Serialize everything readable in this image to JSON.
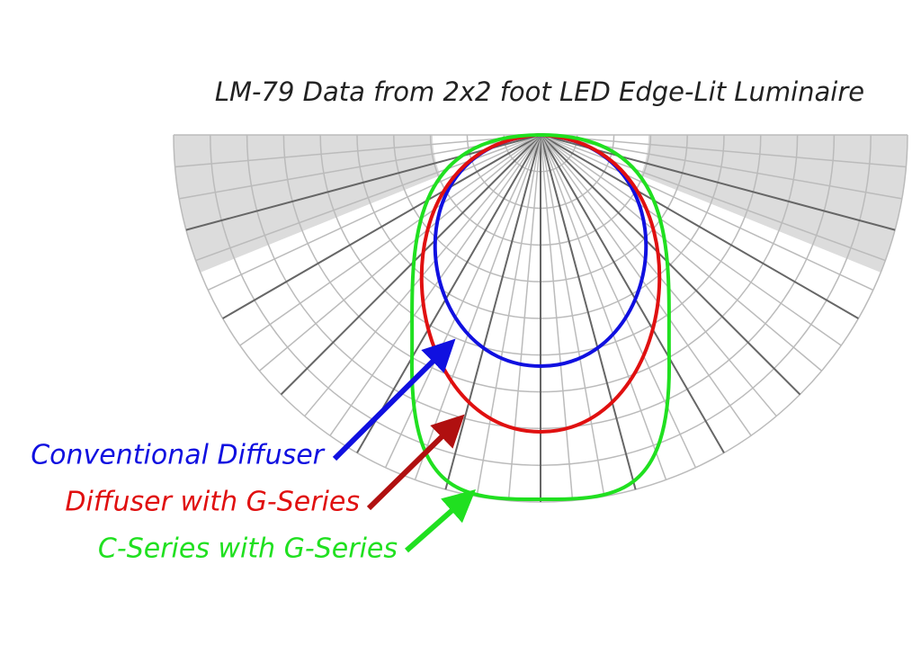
{
  "title": "LM-79 Data from 2x2 foot LED Edge-Lit Luminaire",
  "labels": [
    "Conventional Diffuser",
    "Diffuser with G-Series",
    "C-Series with G-Series"
  ]
}
